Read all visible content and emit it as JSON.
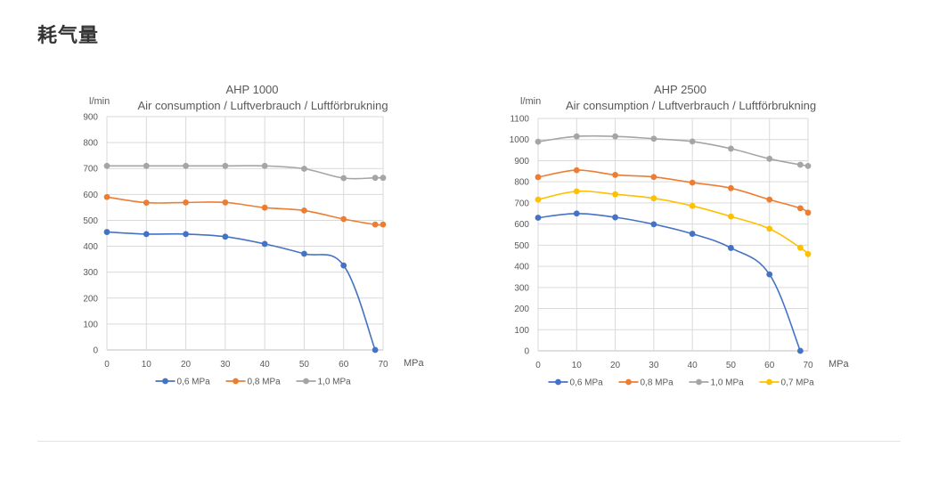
{
  "page": {
    "heading": "耗气量"
  },
  "chart_data": [
    {
      "type": "line",
      "title": "AHP 1000",
      "subtitle": "Air consumption / Luftverbrauch / Luftförbrukning",
      "xlabel": "MPa",
      "ylabel": "l/min",
      "xlim": [
        0,
        70
      ],
      "ylim": [
        0,
        900
      ],
      "xticks": [
        0,
        10,
        20,
        30,
        40,
        50,
        60,
        70
      ],
      "yticks": [
        0,
        100,
        200,
        300,
        400,
        500,
        600,
        700,
        800,
        900
      ],
      "grid": true,
      "legend": "bottom",
      "series": [
        {
          "name": "0,6 MPa",
          "color": "#4472c4",
          "x": [
            0,
            10,
            20,
            30,
            40,
            50,
            60,
            68
          ],
          "y": [
            455,
            447,
            447,
            437,
            409,
            371,
            326,
            0
          ]
        },
        {
          "name": "0,8 MPa",
          "color": "#ed7d31",
          "x": [
            0,
            10,
            20,
            30,
            40,
            50,
            60,
            68,
            70
          ],
          "y": [
            590,
            568,
            569,
            569,
            549,
            538,
            505,
            484,
            484
          ]
        },
        {
          "name": "1,0 MPa",
          "color": "#a5a5a5",
          "x": [
            0,
            10,
            20,
            30,
            40,
            50,
            60,
            68,
            70
          ],
          "y": [
            710,
            710,
            710,
            710,
            710,
            699,
            663,
            664,
            664
          ]
        }
      ]
    },
    {
      "type": "line",
      "title": "AHP 2500",
      "subtitle": "Air consumption / Luftverbrauch / Luftförbrukning",
      "xlabel": "MPa",
      "ylabel": "l/min",
      "xlim": [
        0,
        70
      ],
      "ylim": [
        0,
        1100
      ],
      "xticks": [
        0,
        10,
        20,
        30,
        40,
        50,
        60,
        70
      ],
      "yticks": [
        0,
        100,
        200,
        300,
        400,
        500,
        600,
        700,
        800,
        900,
        1000,
        1100
      ],
      "grid": true,
      "legend": "bottom",
      "series": [
        {
          "name": "0,6 MPa",
          "color": "#4472c4",
          "x": [
            0,
            10,
            20,
            30,
            40,
            50,
            60,
            68
          ],
          "y": [
            630,
            650,
            632,
            599,
            554,
            487,
            362,
            0
          ]
        },
        {
          "name": "0,8 MPa",
          "color": "#ed7d31",
          "x": [
            0,
            10,
            20,
            30,
            40,
            50,
            60,
            68,
            70
          ],
          "y": [
            822,
            855,
            833,
            823,
            796,
            770,
            716,
            675,
            654
          ]
        },
        {
          "name": "1,0 MPa",
          "color": "#a5a5a5",
          "x": [
            0,
            10,
            20,
            30,
            40,
            50,
            60,
            68,
            70
          ],
          "y": [
            990,
            1015,
            1015,
            1004,
            991,
            957,
            909,
            881,
            875
          ]
        },
        {
          "name": "0,7 MPa",
          "color": "#ffc000",
          "x": [
            0,
            10,
            20,
            30,
            40,
            50,
            60,
            68,
            70
          ],
          "y": [
            716,
            755,
            741,
            722,
            686,
            636,
            578,
            488,
            458
          ]
        }
      ]
    }
  ]
}
